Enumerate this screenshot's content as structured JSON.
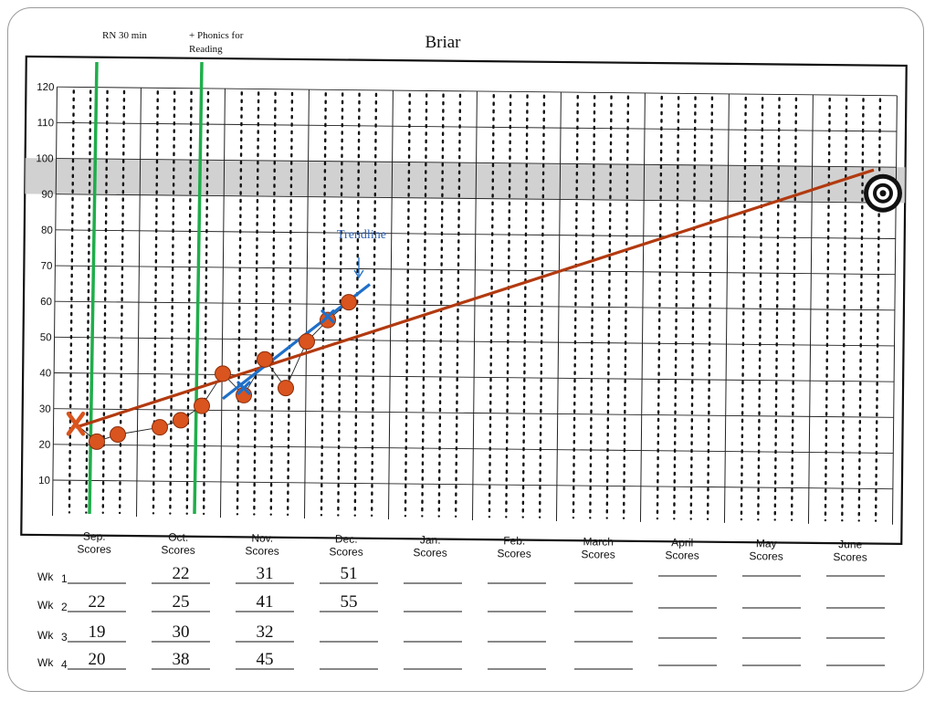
{
  "slide": {
    "title": "Briar",
    "notes": [
      "RN 30 min",
      "+ Phonics for Reading"
    ]
  },
  "colors": {
    "aimline": "#b23a10",
    "trendline": "#1f6fc8",
    "points": "#d9541e",
    "phase_lines": "#1fae4b",
    "goal_band": "#c9c9c9"
  },
  "chart_data": {
    "type": "scatter",
    "title": "Briar",
    "ylim": [
      0,
      120
    ],
    "yticks": [
      10,
      20,
      30,
      40,
      50,
      60,
      70,
      80,
      90,
      100,
      110,
      120
    ],
    "months": [
      "Sep.\nScores",
      "Oct.\nScores",
      "Nov.\nScores",
      "Dec.\nScores",
      "Jan.\nScores",
      "Feb.\nScores",
      "March\nScores",
      "April\nScores",
      "May\nScores",
      "June\nScores"
    ],
    "weeks": [
      "Wk 1",
      "Wk 2",
      "Wk 3",
      "Wk 4"
    ],
    "scores_table": [
      [
        "",
        "22",
        "19",
        "20"
      ],
      [
        "22",
        "25",
        "30",
        "38"
      ],
      [
        "31",
        "41",
        "32",
        "45"
      ],
      [
        "51",
        "55",
        "",
        ""
      ],
      [
        "",
        "",
        "",
        ""
      ],
      [
        "",
        "",
        "",
        ""
      ],
      [
        "",
        "",
        "",
        ""
      ],
      [
        "",
        "",
        "",
        ""
      ],
      [
        "",
        "",
        "",
        ""
      ],
      [
        "",
        "",
        "",
        ""
      ]
    ],
    "series": [
      {
        "kind": "data",
        "points": [
          {
            "x": 1.5,
            "y": 22
          },
          {
            "x": 1.75,
            "y": 24
          },
          {
            "x": 2.25,
            "y": 26
          },
          {
            "x": 2.5,
            "y": 28
          },
          {
            "x": 2.75,
            "y": 32
          },
          {
            "x": 3.0,
            "y": 41
          },
          {
            "x": 3.25,
            "y": 35
          },
          {
            "x": 3.5,
            "y": 45
          },
          {
            "x": 3.75,
            "y": 37
          },
          {
            "x": 4.0,
            "y": 50
          },
          {
            "x": 4.25,
            "y": 56
          },
          {
            "x": 4.5,
            "y": 61
          }
        ]
      },
      {
        "kind": "baseline",
        "points": [
          {
            "x": 1.25,
            "y": 27
          }
        ]
      },
      {
        "kind": "trend_marks",
        "points": [
          {
            "x": 3.25,
            "y": 37
          },
          {
            "x": 4.25,
            "y": 57
          }
        ]
      },
      {
        "kind": "aimline",
        "points": [
          {
            "x": 1.25,
            "y": 26
          },
          {
            "x": 10.75,
            "y": 98
          }
        ]
      },
      {
        "kind": "trendline",
        "points": [
          {
            "x": 3.0,
            "y": 34
          },
          {
            "x": 4.75,
            "y": 66
          }
        ]
      }
    ],
    "goal": {
      "x": 10.75,
      "y": 93,
      "band": [
        90,
        100
      ]
    },
    "phase_changes": [
      {
        "x": 1.5
      },
      {
        "x": 2.75
      }
    ],
    "annotations": [
      {
        "text": "Trendline"
      }
    ]
  }
}
